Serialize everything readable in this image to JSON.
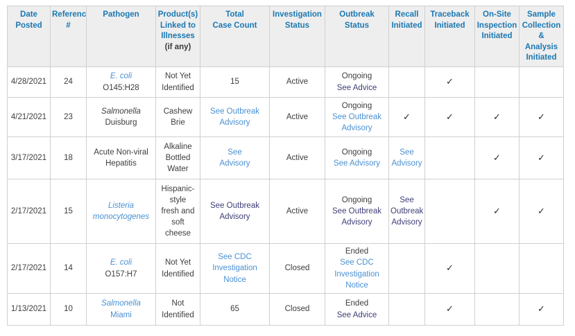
{
  "colors": {
    "header_text": "#1b78b2",
    "header_background": "#eeeeee",
    "border": "#cfcfcf",
    "body_text": "#3d3d3d",
    "link": "#4a90d2",
    "visited_link": "#3e3e78"
  },
  "table": {
    "columns": [
      {
        "key": "date",
        "label": "Date\nPosted"
      },
      {
        "key": "ref",
        "label": "Reference\n#"
      },
      {
        "key": "pathogen",
        "label": "Pathogen"
      },
      {
        "key": "product",
        "label": "Product(s)\nLinked to\nIllnesses",
        "note": "(if any)"
      },
      {
        "key": "total",
        "label": "Total\nCase Count"
      },
      {
        "key": "inv",
        "label": "Investigation\nStatus"
      },
      {
        "key": "outbreak",
        "label": "Outbreak\nStatus"
      },
      {
        "key": "recall",
        "label": "Recall\nInitiated"
      },
      {
        "key": "traceback",
        "label": "Traceback\nInitiated"
      },
      {
        "key": "onsite",
        "label": "On-Site\nInspection\nInitiated"
      },
      {
        "key": "sample",
        "label": "Sample\nCollection\n&\nAnalysis\nInitiated"
      }
    ],
    "rows": [
      {
        "cells": [
          [
            {
              "t": "4/28/2021"
            }
          ],
          [
            {
              "t": "24"
            }
          ],
          [
            {
              "t": "E. coli",
              "s": "li"
            },
            {
              "t": "O145:H28"
            }
          ],
          [
            {
              "t": "Not Yet"
            },
            {
              "t": "Identified"
            }
          ],
          [
            {
              "t": "15"
            }
          ],
          [
            {
              "t": "Active"
            }
          ],
          [
            {
              "t": "Ongoing"
            },
            {
              "t": "See Advice",
              "s": "dl"
            }
          ],
          [],
          [
            {
              "t": "✓",
              "s": "ck"
            }
          ],
          [],
          []
        ]
      },
      {
        "cells": [
          [
            {
              "t": "4/21/2021"
            }
          ],
          [
            {
              "t": "23"
            }
          ],
          [
            {
              "t": "Salmonella",
              "s": "i"
            },
            {
              "t": "Duisburg"
            }
          ],
          [
            {
              "t": "Cashew"
            },
            {
              "t": "Brie"
            }
          ],
          [
            {
              "t": "See Outbreak",
              "s": "l"
            },
            {
              "t": "Advisory",
              "s": "l"
            }
          ],
          [
            {
              "t": "Active"
            }
          ],
          [
            {
              "t": "Ongoing"
            },
            {
              "t": "See Outbreak",
              "s": "l"
            },
            {
              "t": "Advisory",
              "s": "l"
            }
          ],
          [
            {
              "t": "✓",
              "s": "ck"
            }
          ],
          [
            {
              "t": "✓",
              "s": "ck"
            }
          ],
          [
            {
              "t": "✓",
              "s": "ck"
            }
          ],
          [
            {
              "t": "✓",
              "s": "ck"
            }
          ]
        ]
      },
      {
        "cells": [
          [
            {
              "t": "3/17/2021"
            }
          ],
          [
            {
              "t": "18"
            }
          ],
          [
            {
              "t": "Acute Non-viral"
            },
            {
              "t": "Hepatitis"
            }
          ],
          [
            {
              "t": "Alkaline"
            },
            {
              "t": "Bottled"
            },
            {
              "t": "Water"
            }
          ],
          [
            {
              "t": "See",
              "s": "l"
            },
            {
              "t": "Advisory",
              "s": "l"
            }
          ],
          [
            {
              "t": "Active"
            }
          ],
          [
            {
              "t": "Ongoing"
            },
            {
              "t": "See Advisory",
              "s": "l"
            }
          ],
          [
            {
              "t": "See",
              "s": "l"
            },
            {
              "t": "Advisory",
              "s": "l"
            }
          ],
          [],
          [
            {
              "t": "✓",
              "s": "ck"
            }
          ],
          [
            {
              "t": "✓",
              "s": "ck"
            }
          ]
        ]
      },
      {
        "cells": [
          [
            {
              "t": "2/17/2021"
            }
          ],
          [
            {
              "t": "15"
            }
          ],
          [
            {
              "t": "Listeria",
              "s": "li"
            },
            {
              "t": "monocytogenes",
              "s": "li"
            }
          ],
          [
            {
              "t": "Hispanic-"
            },
            {
              "t": "style"
            },
            {
              "t": "fresh and"
            },
            {
              "t": "soft"
            },
            {
              "t": "cheese"
            }
          ],
          [
            {
              "t": "See Outbreak",
              "s": "dl"
            },
            {
              "t": "Advisory",
              "s": "dl"
            }
          ],
          [
            {
              "t": "Active"
            }
          ],
          [
            {
              "t": "Ongoing"
            },
            {
              "t": "See Outbreak",
              "s": "dl"
            },
            {
              "t": "Advisory",
              "s": "dl"
            }
          ],
          [
            {
              "t": "See",
              "s": "dl"
            },
            {
              "t": "Outbreak",
              "s": "dl"
            },
            {
              "t": "Advisory",
              "s": "dl"
            }
          ],
          [],
          [
            {
              "t": "✓",
              "s": "ck"
            }
          ],
          [
            {
              "t": "✓",
              "s": "ck"
            }
          ]
        ]
      },
      {
        "cells": [
          [
            {
              "t": "2/17/2021"
            }
          ],
          [
            {
              "t": "14"
            }
          ],
          [
            {
              "t": "E. coli",
              "s": "li"
            },
            {
              "t": "O157:H7"
            }
          ],
          [
            {
              "t": "Not Yet"
            },
            {
              "t": "Identified"
            }
          ],
          [
            {
              "t": "See CDC",
              "s": "l"
            },
            {
              "t": "Investigation",
              "s": "l"
            },
            {
              "t": "Notice",
              "s": "l"
            }
          ],
          [
            {
              "t": "Closed"
            }
          ],
          [
            {
              "t": "Ended"
            },
            {
              "t": "See CDC",
              "s": "l"
            },
            {
              "t": "Investigation",
              "s": "l"
            },
            {
              "t": "Notice",
              "s": "l"
            }
          ],
          [],
          [
            {
              "t": "✓",
              "s": "ck"
            }
          ],
          [],
          []
        ]
      },
      {
        "cells": [
          [
            {
              "t": "1/13/2021"
            }
          ],
          [
            {
              "t": "10"
            }
          ],
          [
            {
              "t": "Salmonella",
              "s": "li"
            },
            {
              "t": "Miami",
              "s": "l"
            }
          ],
          [
            {
              "t": "Not"
            },
            {
              "t": "Identified"
            }
          ],
          [
            {
              "t": "65"
            }
          ],
          [
            {
              "t": "Closed"
            }
          ],
          [
            {
              "t": "Ended"
            },
            {
              "t": "See Advice",
              "s": "dl"
            }
          ],
          [],
          [
            {
              "t": "✓",
              "s": "ck"
            }
          ],
          [],
          [
            {
              "t": "✓",
              "s": "ck"
            }
          ]
        ]
      }
    ]
  }
}
